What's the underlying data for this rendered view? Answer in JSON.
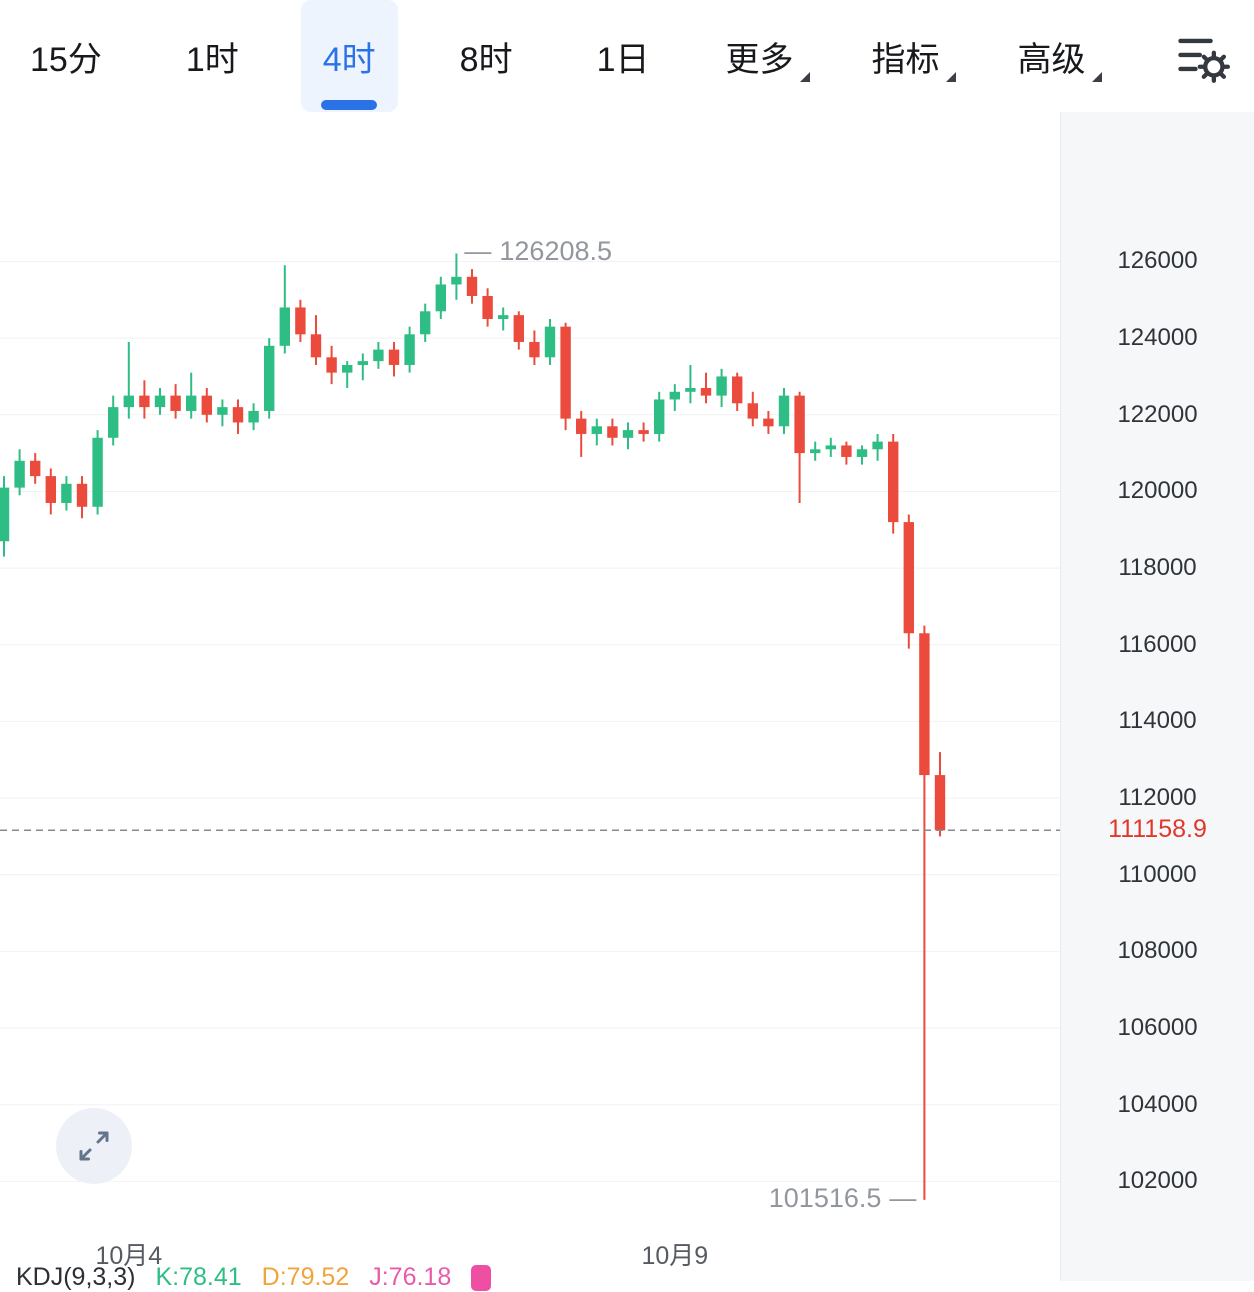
{
  "toolbar": {
    "tabs": [
      {
        "label": "15分",
        "active": false
      },
      {
        "label": "1时",
        "active": false
      },
      {
        "label": "4时",
        "active": true
      },
      {
        "label": "8时",
        "active": false
      },
      {
        "label": "1日",
        "active": false
      }
    ],
    "menus": [
      {
        "label": "更多"
      },
      {
        "label": "指标"
      },
      {
        "label": "高级"
      }
    ]
  },
  "chart_data": {
    "type": "candlestick",
    "ylim": [
      99400,
      129900
    ],
    "y_ticks": [
      126000,
      124000,
      122000,
      120000,
      118000,
      116000,
      114000,
      112000,
      110000,
      108000,
      106000,
      104000,
      102000
    ],
    "x_axis": [
      {
        "label": "10月4",
        "index": 8
      },
      {
        "label": "10月9",
        "index": 43
      }
    ],
    "high_label": "126208.5",
    "low_label": "101516.5",
    "dash": "—",
    "current_price": 111158.9,
    "current_price_label": "111158.9",
    "colors": {
      "up": "#2ebd85",
      "down": "#eb4b3c",
      "grid": "#f1f2f4",
      "dashed_line": "#86898e",
      "annotation": "#92979e",
      "current": "#e1382b",
      "axis_text": "#2f343a"
    },
    "candles": [
      [
        118700,
        120400,
        118300,
        120100
      ],
      [
        120100,
        121100,
        119900,
        120800
      ],
      [
        120800,
        121000,
        120200,
        120400
      ],
      [
        120400,
        120600,
        119400,
        119700
      ],
      [
        119700,
        120400,
        119500,
        120200
      ],
      [
        120200,
        120400,
        119300,
        119600
      ],
      [
        119600,
        121600,
        119400,
        121400
      ],
      [
        121400,
        122500,
        121200,
        122200
      ],
      [
        122200,
        123900,
        121900,
        122500
      ],
      [
        122500,
        122900,
        121900,
        122200
      ],
      [
        122200,
        122700,
        122000,
        122500
      ],
      [
        122500,
        122800,
        121900,
        122100
      ],
      [
        122100,
        123100,
        121900,
        122500
      ],
      [
        122500,
        122700,
        121800,
        122000
      ],
      [
        122000,
        122400,
        121700,
        122200
      ],
      [
        122200,
        122400,
        121500,
        121800
      ],
      [
        121800,
        122300,
        121600,
        122100
      ],
      [
        122100,
        124000,
        121900,
        123800
      ],
      [
        123800,
        125900,
        123600,
        124800
      ],
      [
        124800,
        125000,
        123900,
        124100
      ],
      [
        124100,
        124600,
        123300,
        123500
      ],
      [
        123500,
        123800,
        122800,
        123100
      ],
      [
        123100,
        123400,
        122700,
        123300
      ],
      [
        123300,
        123600,
        122900,
        123400
      ],
      [
        123400,
        123900,
        123200,
        123700
      ],
      [
        123700,
        123900,
        123000,
        123300
      ],
      [
        123300,
        124300,
        123100,
        124100
      ],
      [
        124100,
        124900,
        123900,
        124700
      ],
      [
        124700,
        125600,
        124500,
        125400
      ],
      [
        125400,
        126208.5,
        125000,
        125600
      ],
      [
        125600,
        125800,
        124900,
        125100
      ],
      [
        125100,
        125300,
        124300,
        124500
      ],
      [
        124500,
        124800,
        124200,
        124600
      ],
      [
        124600,
        124700,
        123700,
        123900
      ],
      [
        123900,
        124200,
        123300,
        123500
      ],
      [
        123500,
        124500,
        123300,
        124300
      ],
      [
        124300,
        124400,
        121600,
        121900
      ],
      [
        121900,
        122100,
        120900,
        121500
      ],
      [
        121500,
        121900,
        121200,
        121700
      ],
      [
        121700,
        121900,
        121200,
        121400
      ],
      [
        121400,
        121800,
        121100,
        121600
      ],
      [
        121600,
        121800,
        121300,
        121500
      ],
      [
        121500,
        122600,
        121300,
        122400
      ],
      [
        122400,
        122800,
        122100,
        122600
      ],
      [
        122600,
        123300,
        122300,
        122700
      ],
      [
        122700,
        123100,
        122300,
        122500
      ],
      [
        122500,
        123200,
        122200,
        123000
      ],
      [
        123000,
        123100,
        122100,
        122300
      ],
      [
        122300,
        122600,
        121700,
        121900
      ],
      [
        121900,
        122100,
        121500,
        121700
      ],
      [
        121700,
        122700,
        121500,
        122500
      ],
      [
        122500,
        122600,
        119700,
        121000
      ],
      [
        121000,
        121300,
        120800,
        121100
      ],
      [
        121100,
        121400,
        120900,
        121200
      ],
      [
        121200,
        121300,
        120700,
        120900
      ],
      [
        120900,
        121200,
        120700,
        121100
      ],
      [
        121100,
        121500,
        120800,
        121300
      ],
      [
        121300,
        121500,
        118900,
        119200
      ],
      [
        119200,
        119400,
        115900,
        116300
      ],
      [
        116300,
        116500,
        101516.5,
        112600
      ],
      [
        112600,
        113200,
        111000,
        111158.9
      ]
    ]
  },
  "indicator": {
    "name": "KDJ(9,3,3)",
    "k": "K:78.41",
    "d": "D:79.52",
    "j": "J:76.18",
    "name_color": "#2c3036",
    "k_color": "#2ebd85",
    "d_color": "#f0a43c",
    "j_color": "#ea5aaa",
    "badge_color": "#ee4fa3"
  }
}
